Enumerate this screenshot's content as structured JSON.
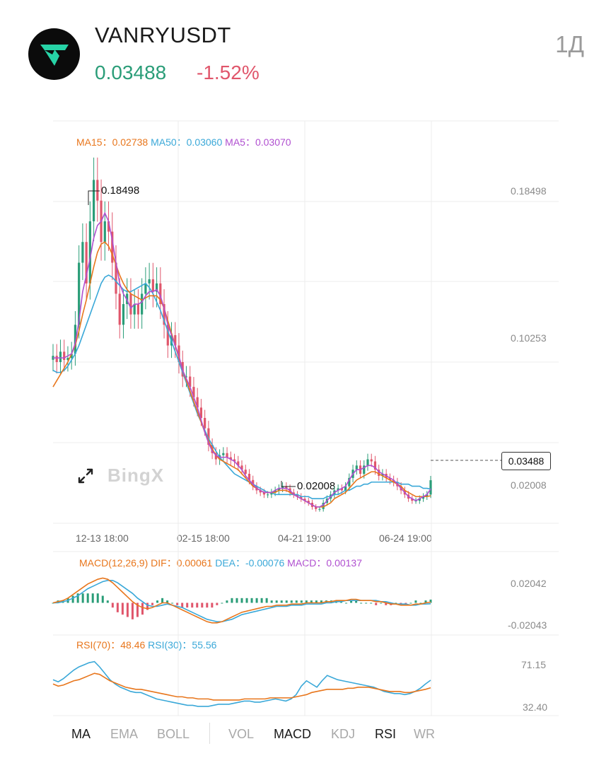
{
  "header": {
    "pair": "VANRYUSDT",
    "price": "0.03488",
    "change": "-1.52%",
    "interval": "1Д",
    "logo": "vanry-logo-icon"
  },
  "colors": {
    "up": "#2a9d78",
    "down": "#e0566b",
    "ma15": "#e8761c",
    "ma50": "#3aa8d8",
    "ma5": "#b04fd0",
    "rsi70": "#e8761c",
    "rsi30": "#3aa8d8"
  },
  "main_legend": {
    "ma15": "MA15：0.02738",
    "ma50": "MA50：0.03060",
    "ma5": "MA5：0.03070"
  },
  "macd_legend": {
    "title": "MACD(12,26,9)",
    "dif": "DIF：0.00061",
    "dea": "DEA：-0.00076",
    "macd": "MACD：0.00137"
  },
  "rsi_legend": {
    "r70": "RSI(70)：48.46",
    "r30": "RSI(30)：55.56"
  },
  "watermark": "BingX",
  "expand_icon": "expand-arrows-icon",
  "tabs": [
    {
      "label": "MA",
      "active": true
    },
    {
      "label": "EMA",
      "active": false
    },
    {
      "label": "BOLL",
      "active": false
    },
    {
      "label": "VOL",
      "active": false
    },
    {
      "label": "MACD",
      "active": true
    },
    {
      "label": "KDJ",
      "active": false
    },
    {
      "label": "RSI",
      "active": true
    },
    {
      "label": "WR",
      "active": false
    }
  ],
  "chart_data": [
    {
      "type": "candlestick",
      "title": "VANRYUSDT 1Д",
      "y_ticks": [
        "0.18498",
        "0.10253",
        "0.02008"
      ],
      "x_ticks": [
        "12-13 18:00",
        "02-15 18:00",
        "04-21 19:00",
        "06-24 19:00"
      ],
      "ylim": [
        0.0141,
        0.2085
      ],
      "high_label": "0.18498",
      "low_label": "0.02008",
      "last_price_label": "0.03488",
      "series_close": [
        0.095,
        0.092,
        0.097,
        0.093,
        0.094,
        0.096,
        0.11,
        0.14,
        0.15,
        0.13,
        0.16,
        0.18,
        0.17,
        0.15,
        0.16,
        0.155,
        0.14,
        0.125,
        0.11,
        0.12,
        0.125,
        0.115,
        0.12,
        0.115,
        0.125,
        0.13,
        0.132,
        0.126,
        0.13,
        0.12,
        0.11,
        0.1,
        0.105,
        0.1,
        0.092,
        0.085,
        0.085,
        0.08,
        0.075,
        0.07,
        0.065,
        0.06,
        0.052,
        0.048,
        0.045,
        0.047,
        0.048,
        0.046,
        0.045,
        0.044,
        0.042,
        0.04,
        0.038,
        0.035,
        0.032,
        0.03,
        0.029,
        0.028,
        0.028,
        0.029,
        0.03,
        0.031,
        0.032,
        0.031,
        0.029,
        0.028,
        0.027,
        0.026,
        0.025,
        0.024,
        0.022,
        0.021,
        0.021,
        0.024,
        0.026,
        0.028,
        0.03,
        0.031,
        0.03,
        0.032,
        0.036,
        0.04,
        0.042,
        0.038,
        0.042,
        0.045,
        0.044,
        0.04,
        0.037,
        0.038,
        0.036,
        0.035,
        0.034,
        0.032,
        0.03,
        0.028,
        0.026,
        0.025,
        0.025,
        0.026,
        0.027,
        0.028,
        0.0349
      ],
      "ma5": [
        0.094,
        0.094,
        0.094,
        0.094,
        0.095,
        0.096,
        0.101,
        0.112,
        0.126,
        0.134,
        0.142,
        0.152,
        0.158,
        0.16,
        0.164,
        0.16,
        0.151,
        0.14,
        0.13,
        0.125,
        0.122,
        0.118,
        0.12,
        0.12,
        0.121,
        0.124,
        0.126,
        0.126,
        0.127,
        0.124,
        0.118,
        0.11,
        0.105,
        0.1,
        0.095,
        0.088,
        0.084,
        0.08,
        0.075,
        0.07,
        0.064,
        0.058,
        0.053,
        0.049,
        0.047,
        0.046,
        0.046,
        0.046,
        0.045,
        0.044,
        0.042,
        0.04,
        0.037,
        0.035,
        0.033,
        0.031,
        0.03,
        0.029,
        0.029,
        0.029,
        0.03,
        0.031,
        0.031,
        0.031,
        0.03,
        0.028,
        0.027,
        0.026,
        0.025,
        0.024,
        0.023,
        0.022,
        0.022,
        0.023,
        0.025,
        0.027,
        0.029,
        0.03,
        0.031,
        0.032,
        0.035,
        0.038,
        0.04,
        0.04,
        0.041,
        0.042,
        0.042,
        0.041,
        0.039,
        0.038,
        0.037,
        0.036,
        0.035,
        0.033,
        0.031,
        0.029,
        0.027,
        0.026,
        0.025,
        0.026,
        0.027,
        0.028,
        0.0307
      ],
      "ma15": [
        0.08,
        0.083,
        0.086,
        0.089,
        0.092,
        0.096,
        0.1,
        0.107,
        0.115,
        0.122,
        0.13,
        0.138,
        0.145,
        0.149,
        0.15,
        0.148,
        0.144,
        0.139,
        0.134,
        0.13,
        0.127,
        0.125,
        0.124,
        0.123,
        0.122,
        0.123,
        0.124,
        0.124,
        0.124,
        0.122,
        0.118,
        0.112,
        0.106,
        0.1,
        0.094,
        0.088,
        0.083,
        0.078,
        0.073,
        0.068,
        0.063,
        0.058,
        0.054,
        0.05,
        0.047,
        0.045,
        0.044,
        0.043,
        0.042,
        0.041,
        0.04,
        0.038,
        0.036,
        0.034,
        0.032,
        0.031,
        0.03,
        0.029,
        0.029,
        0.029,
        0.029,
        0.03,
        0.03,
        0.03,
        0.029,
        0.028,
        0.027,
        0.026,
        0.025,
        0.024,
        0.023,
        0.022,
        0.022,
        0.022,
        0.023,
        0.024,
        0.026,
        0.027,
        0.028,
        0.029,
        0.031,
        0.033,
        0.035,
        0.036,
        0.037,
        0.038,
        0.039,
        0.039,
        0.038,
        0.037,
        0.036,
        0.035,
        0.034,
        0.033,
        0.032,
        0.03,
        0.029,
        0.028,
        0.027,
        0.027,
        0.027,
        0.027,
        0.0274
      ],
      "ma50": [
        0.088,
        0.087,
        0.087,
        0.088,
        0.09,
        0.093,
        0.096,
        0.1,
        0.105,
        0.11,
        0.115,
        0.12,
        0.125,
        0.13,
        0.133,
        0.134,
        0.133,
        0.131,
        0.129,
        0.127,
        0.126,
        0.126,
        0.127,
        0.128,
        0.129,
        0.13,
        0.128,
        0.125,
        0.121,
        0.117,
        0.112,
        0.107,
        0.102,
        0.097,
        0.092,
        0.087,
        0.082,
        0.077,
        0.072,
        0.067,
        0.063,
        0.059,
        0.055,
        0.052,
        0.049,
        0.046,
        0.044,
        0.042,
        0.04,
        0.038,
        0.037,
        0.036,
        0.035,
        0.034,
        0.033,
        0.032,
        0.031,
        0.03,
        0.029,
        0.029,
        0.028,
        0.028,
        0.028,
        0.028,
        0.028,
        0.028,
        0.028,
        0.027,
        0.027,
        0.027,
        0.026,
        0.026,
        0.026,
        0.026,
        0.027,
        0.027,
        0.028,
        0.028,
        0.029,
        0.03,
        0.03,
        0.031,
        0.032,
        0.032,
        0.033,
        0.033,
        0.034,
        0.034,
        0.034,
        0.034,
        0.034,
        0.034,
        0.034,
        0.034,
        0.033,
        0.033,
        0.033,
        0.032,
        0.032,
        0.032,
        0.031,
        0.031,
        0.0306
      ]
    },
    {
      "type": "line",
      "title": "MACD(12,26,9)",
      "y_ticks": [
        "0.02042",
        "-0.02043"
      ],
      "ylim": [
        -0.0255,
        0.0255
      ],
      "dif": [
        0.0,
        0.001,
        0.002,
        0.004,
        0.007,
        0.01,
        0.013,
        0.016,
        0.018,
        0.02,
        0.021,
        0.02,
        0.017,
        0.013,
        0.009,
        0.005,
        0.001,
        -0.002,
        -0.004,
        -0.005,
        -0.004,
        -0.002,
        0.0,
        0.0,
        -0.002,
        -0.004,
        -0.006,
        -0.008,
        -0.01,
        -0.012,
        -0.014,
        -0.016,
        -0.017,
        -0.017,
        -0.016,
        -0.014,
        -0.012,
        -0.01,
        -0.008,
        -0.007,
        -0.006,
        -0.005,
        -0.004,
        -0.003,
        -0.003,
        -0.002,
        -0.002,
        -0.002,
        -0.001,
        -0.001,
        -0.001,
        0.0,
        0.0,
        0.0,
        0.0,
        0.001,
        0.001,
        0.002,
        0.002,
        0.002,
        0.003,
        0.003,
        0.002,
        0.002,
        0.002,
        0.001,
        0.001,
        0.0,
        -0.001,
        -0.001,
        -0.002,
        -0.002,
        -0.002,
        -0.001,
        -0.001,
        0.0,
        0.00061
      ],
      "dea": [
        0.0,
        0.0,
        0.001,
        0.002,
        0.004,
        0.006,
        0.009,
        0.012,
        0.014,
        0.016,
        0.018,
        0.019,
        0.019,
        0.017,
        0.014,
        0.011,
        0.008,
        0.004,
        0.001,
        -0.002,
        -0.003,
        -0.003,
        -0.002,
        -0.001,
        -0.002,
        -0.003,
        -0.004,
        -0.006,
        -0.008,
        -0.01,
        -0.012,
        -0.014,
        -0.015,
        -0.016,
        -0.016,
        -0.015,
        -0.014,
        -0.012,
        -0.01,
        -0.009,
        -0.008,
        -0.007,
        -0.006,
        -0.005,
        -0.004,
        -0.003,
        -0.003,
        -0.003,
        -0.002,
        -0.002,
        -0.002,
        -0.001,
        -0.001,
        -0.001,
        -0.001,
        0.0,
        0.0,
        0.001,
        0.001,
        0.002,
        0.002,
        0.002,
        0.002,
        0.002,
        0.002,
        0.002,
        0.001,
        0.001,
        0.0,
        -0.001,
        -0.001,
        -0.001,
        -0.002,
        -0.002,
        -0.001,
        -0.001,
        -0.00076
      ]
    },
    {
      "type": "line",
      "title": "RSI",
      "y_ticks": [
        "71.15",
        "32.40"
      ],
      "ylim": [
        25,
        80
      ],
      "rsi70": [
        52,
        50,
        51,
        53,
        55,
        56,
        58,
        60,
        62,
        61,
        58,
        55,
        53,
        51,
        49,
        48,
        47,
        47,
        46,
        45,
        44,
        43,
        42,
        41,
        40,
        40,
        39,
        39,
        38,
        38,
        38,
        37,
        37,
        37,
        37,
        37,
        37,
        38,
        38,
        38,
        38,
        38,
        39,
        39,
        39,
        39,
        39,
        40,
        41,
        42,
        44,
        45,
        46,
        47,
        47,
        47,
        47,
        48,
        48,
        49,
        49,
        49,
        48,
        47,
        46,
        45,
        45,
        45,
        44,
        44,
        45,
        46,
        47,
        48.46
      ],
      "rsi30": [
        56,
        54,
        57,
        61,
        65,
        68,
        70,
        72,
        73,
        68,
        62,
        56,
        52,
        49,
        47,
        45,
        44,
        44,
        42,
        40,
        38,
        37,
        36,
        35,
        34,
        33,
        32,
        32,
        31,
        31,
        31,
        32,
        33,
        33,
        33,
        34,
        35,
        36,
        36,
        35,
        35,
        36,
        37,
        38,
        37,
        36,
        38,
        42,
        50,
        55,
        52,
        49,
        55,
        60,
        58,
        56,
        55,
        54,
        53,
        52,
        51,
        50,
        49,
        47,
        45,
        44,
        43,
        43,
        42,
        43,
        45,
        48,
        52,
        55.56
      ]
    }
  ]
}
